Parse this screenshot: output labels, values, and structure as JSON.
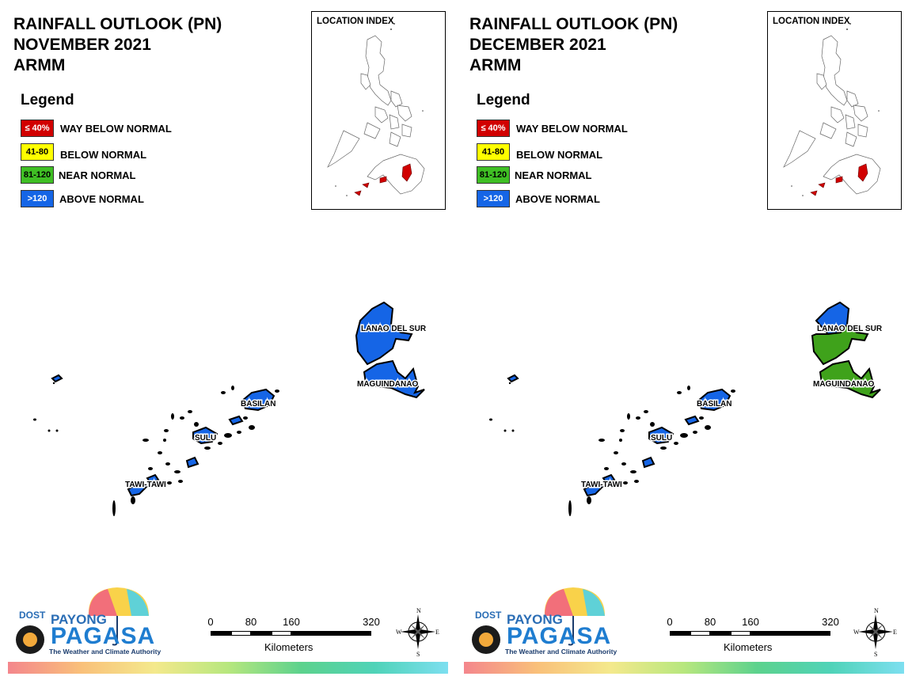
{
  "panels": [
    {
      "title_line1": "RAINFALL OUTLOOK (PN)",
      "title_line2": "NOVEMBER 2021",
      "title_line3": "ARMM",
      "province_fill": "#1565e6"
    },
    {
      "title_line1": "RAINFALL OUTLOOK (PN)",
      "title_line2": "DECEMBER 2021",
      "title_line3": "ARMM",
      "province_fill": "#3fa21b"
    }
  ],
  "legend": {
    "title": "Legend",
    "items": [
      {
        "swatch_text": "≤ 40%",
        "label": "WAY BELOW NORMAL",
        "color": "#d10000",
        "text_color": "#ffffff"
      },
      {
        "swatch_text": "41-80",
        "label": "BELOW NORMAL",
        "color": "#ffff00",
        "text_color": "#000000"
      },
      {
        "swatch_text": "81-120",
        "label": "NEAR NORMAL",
        "color": "#3fbf24",
        "text_color": "#000000"
      },
      {
        "swatch_text": ">120",
        "label": "ABOVE NORMAL",
        "color": "#1565e6",
        "text_color": "#ffffff"
      }
    ]
  },
  "location_index": {
    "title": "LOCATION INDEX",
    "highlight_color": "#d10000"
  },
  "provinces": [
    "LANAO DEL SUR",
    "MAGUINDANAO",
    "BASILAN",
    "SULU",
    "TAWI-TAWI"
  ],
  "scale": {
    "ticks": [
      "0",
      "80",
      "160",
      "320"
    ],
    "unit": "Kilometers"
  },
  "compass": {
    "n": "N",
    "s": "S",
    "e": "E",
    "w": "W"
  },
  "logo": {
    "dost": "DOST",
    "payong": "PAYONG",
    "pagasa": "PAGASA",
    "tagline": "The Weather and Climate Authority"
  }
}
